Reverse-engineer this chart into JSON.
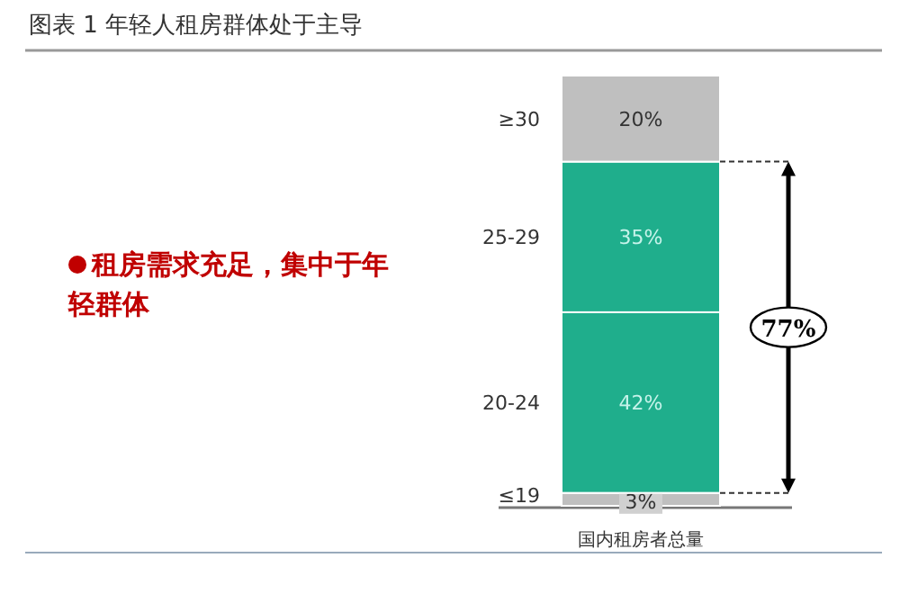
{
  "chart_data": {
    "type": "bar",
    "stacked": true,
    "title": "图表 1 年轻人租房群体处于主导",
    "categories": [
      "国内租房者总量"
    ],
    "series": [
      {
        "name": "≤19",
        "color": "#bfbfbf",
        "values": [
          3
        ],
        "value_labels": [
          "3%"
        ]
      },
      {
        "name": "20-24",
        "color": "#1fae8c",
        "values": [
          42
        ],
        "value_labels": [
          "42%"
        ]
      },
      {
        "name": "25-29",
        "color": "#1fae8c",
        "values": [
          35
        ],
        "value_labels": [
          "35%"
        ]
      },
      {
        "name": "≥30",
        "color": "#bfbfbf",
        "values": [
          20
        ],
        "value_labels": [
          "20%"
        ]
      }
    ],
    "legend": false,
    "annotations": [
      "租房需求充足，集中于年轻群体",
      "77%"
    ]
  }
}
